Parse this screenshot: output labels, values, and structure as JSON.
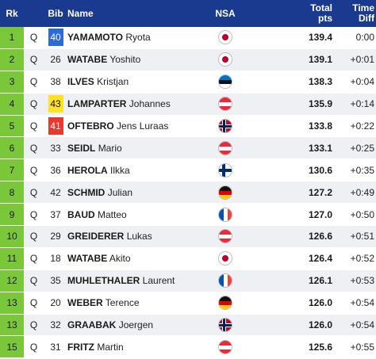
{
  "header": {
    "rank": "Rk",
    "bib": "Bib",
    "name": "Name",
    "nsa": "NSA",
    "pts_line1": "Total",
    "pts_line2": "pts",
    "diff_line1": "Time",
    "diff_line2": "Diff"
  },
  "colors": {
    "header_bg": "#1a3a8f",
    "rank_bg": "#7ac73a",
    "bib_blue": "#2f6bd8",
    "bib_yellow": "#ffe226",
    "bib_red": "#e8392f"
  },
  "rows": [
    {
      "rank": "1",
      "q": "Q",
      "bib": "40",
      "bib_color": "blue",
      "last": "YAMAMOTO",
      "first": "Ryota",
      "nsa": "jpn",
      "pts": "139.4",
      "diff": "0:00"
    },
    {
      "rank": "2",
      "q": "Q",
      "bib": "26",
      "bib_color": "",
      "last": "WATABE",
      "first": "Yoshito",
      "nsa": "jpn",
      "pts": "139.1",
      "diff": "+0:01"
    },
    {
      "rank": "3",
      "q": "Q",
      "bib": "38",
      "bib_color": "",
      "last": "ILVES",
      "first": "Kristjan",
      "nsa": "est",
      "pts": "138.3",
      "diff": "+0:04"
    },
    {
      "rank": "4",
      "q": "Q",
      "bib": "43",
      "bib_color": "yellow",
      "last": "LAMPARTER",
      "first": "Johannes",
      "nsa": "aut",
      "pts": "135.9",
      "diff": "+0:14"
    },
    {
      "rank": "5",
      "q": "Q",
      "bib": "41",
      "bib_color": "red",
      "last": "OFTEBRO",
      "first": "Jens Luraas",
      "nsa": "nor",
      "pts": "133.8",
      "diff": "+0:22"
    },
    {
      "rank": "6",
      "q": "Q",
      "bib": "33",
      "bib_color": "",
      "last": "SEIDL",
      "first": "Mario",
      "nsa": "aut",
      "pts": "133.1",
      "diff": "+0:25"
    },
    {
      "rank": "7",
      "q": "Q",
      "bib": "36",
      "bib_color": "",
      "last": "HEROLA",
      "first": "Ilkka",
      "nsa": "fin",
      "pts": "130.6",
      "diff": "+0:35"
    },
    {
      "rank": "8",
      "q": "Q",
      "bib": "42",
      "bib_color": "",
      "last": "SCHMID",
      "first": "Julian",
      "nsa": "ger",
      "pts": "127.2",
      "diff": "+0:49"
    },
    {
      "rank": "9",
      "q": "Q",
      "bib": "37",
      "bib_color": "",
      "last": "BAUD",
      "first": "Matteo",
      "nsa": "fra",
      "pts": "127.0",
      "diff": "+0:50"
    },
    {
      "rank": "10",
      "q": "Q",
      "bib": "29",
      "bib_color": "",
      "last": "GREIDERER",
      "first": "Lukas",
      "nsa": "aut",
      "pts": "126.6",
      "diff": "+0:51"
    },
    {
      "rank": "11",
      "q": "Q",
      "bib": "18",
      "bib_color": "",
      "last": "WATABE",
      "first": "Akito",
      "nsa": "jpn",
      "pts": "126.4",
      "diff": "+0:52"
    },
    {
      "rank": "12",
      "q": "Q",
      "bib": "35",
      "bib_color": "",
      "last": "MUHLETHALER",
      "first": "Laurent",
      "nsa": "fra",
      "pts": "126.1",
      "diff": "+0:53"
    },
    {
      "rank": "13",
      "q": "Q",
      "bib": "20",
      "bib_color": "",
      "last": "WEBER",
      "first": "Terence",
      "nsa": "ger",
      "pts": "126.0",
      "diff": "+0:54"
    },
    {
      "rank": "13",
      "q": "Q",
      "bib": "32",
      "bib_color": "",
      "last": "GRAABAK",
      "first": "Joergen",
      "nsa": "nor",
      "pts": "126.0",
      "diff": "+0:54"
    },
    {
      "rank": "15",
      "q": "Q",
      "bib": "31",
      "bib_color": "",
      "last": "FRITZ",
      "first": "Martin",
      "nsa": "aut",
      "pts": "125.6",
      "diff": "+0:55"
    }
  ]
}
